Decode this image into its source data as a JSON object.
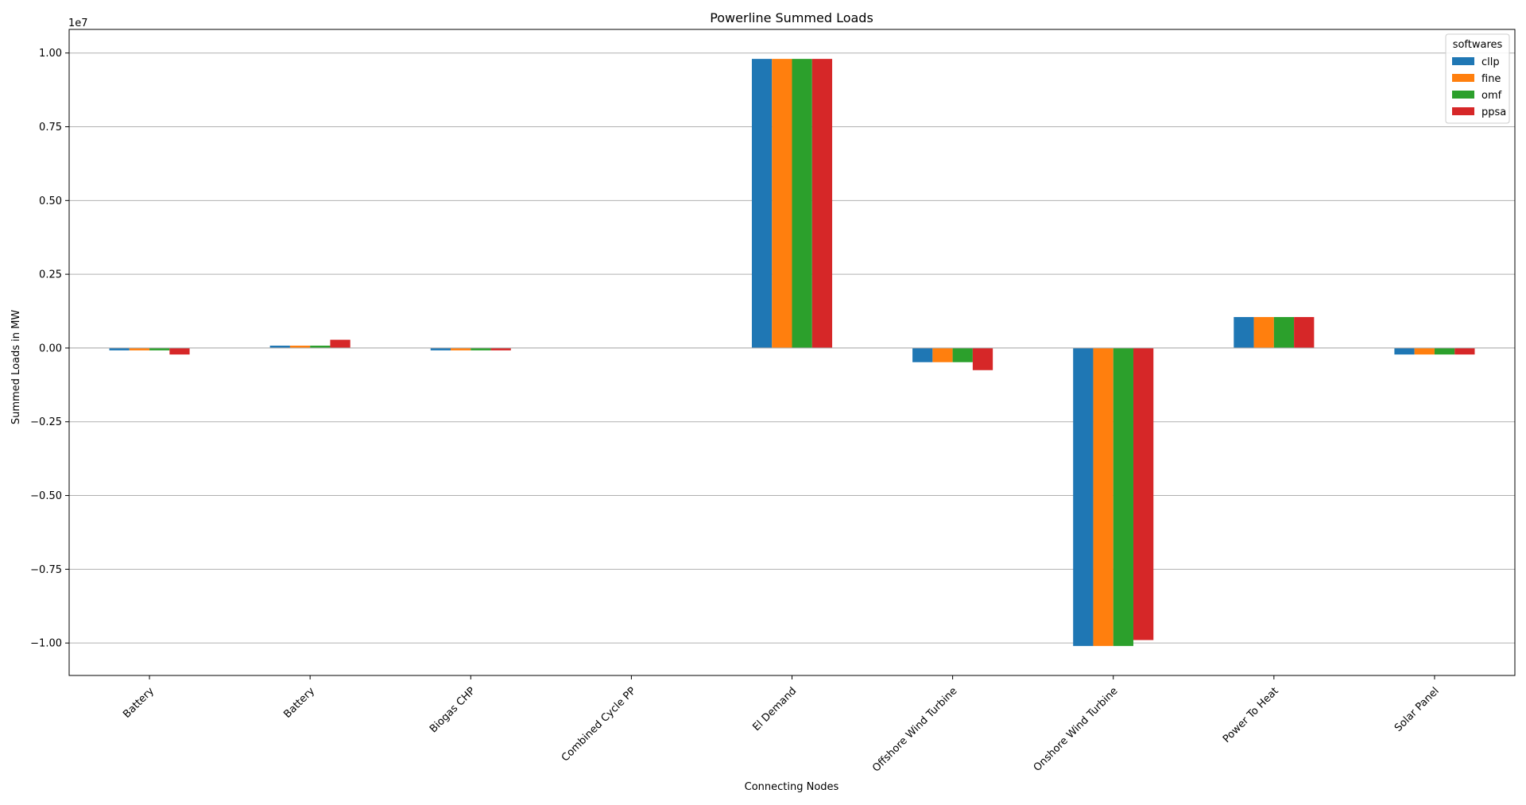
{
  "chart_data": {
    "type": "bar",
    "title": "Powerline Summed Loads",
    "xlabel": "Connecting Nodes",
    "ylabel": "Summed Loads in MW",
    "y_multiplier_label": "1e7",
    "y_scale_factor": 10000000,
    "ylim": [
      -1.11,
      1.08
    ],
    "yticks": [
      -1.0,
      -0.75,
      -0.5,
      -0.25,
      0.0,
      0.25,
      0.5,
      0.75,
      1.0
    ],
    "ytick_labels": [
      "−1.00",
      "−0.75",
      "−0.50",
      "−0.25",
      "0.00",
      "0.25",
      "0.50",
      "0.75",
      "1.00"
    ],
    "grid": "horizontal",
    "categories": [
      "Battery",
      "Battery",
      "Biogas CHP",
      "Combined Cycle PP",
      "El Demand",
      "Offshore Wind Turbine",
      "Onshore Wind Turbine",
      "Power To Heat",
      "Solar Panel"
    ],
    "legend": {
      "title": "softwares",
      "placement": "upper-right"
    },
    "series": [
      {
        "name": "cllp",
        "color": "#1f77b4",
        "values": [
          -0.008,
          0.008,
          -0.008,
          0.0,
          0.98,
          -0.048,
          -1.01,
          0.105,
          -0.022
        ]
      },
      {
        "name": "fine",
        "color": "#ff7f0e",
        "values": [
          -0.008,
          0.008,
          -0.008,
          0.0,
          0.98,
          -0.048,
          -1.01,
          0.105,
          -0.022
        ]
      },
      {
        "name": "omf",
        "color": "#2ca02c",
        "values": [
          -0.008,
          0.008,
          -0.008,
          0.0,
          0.98,
          -0.048,
          -1.01,
          0.105,
          -0.022
        ]
      },
      {
        "name": "ppsa",
        "color": "#d62728",
        "values": [
          -0.022,
          0.028,
          -0.008,
          0.0,
          0.98,
          -0.075,
          -0.99,
          0.105,
          -0.022
        ]
      }
    ]
  }
}
